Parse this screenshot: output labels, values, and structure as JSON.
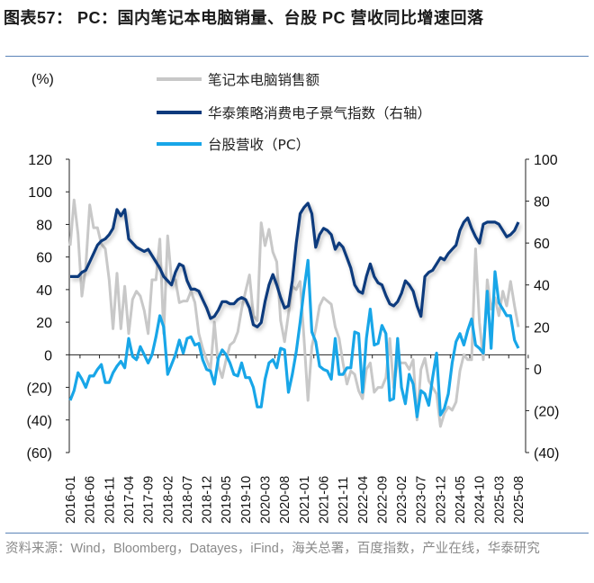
{
  "title": "图表57：  PC：国内笔记本电脑销量、台股 PC 营收同比增速回落",
  "source": "资料来源：Wind，Bloomberg，Datayes，iFind，海关总署，百度指数，产业在线，华泰研究",
  "colors": {
    "notebook_sales": "#c8c8c8",
    "sentiment_index": "#0c3a7d",
    "tw_revenue": "#18a6e8",
    "rule": "#5b84b8"
  },
  "chart_data": {
    "type": "line",
    "ylabel": "(%)",
    "ylim": [
      -60,
      120
    ],
    "y2lim": [
      -40,
      100
    ],
    "yticks": [
      "120",
      "100",
      "80",
      "60",
      "40",
      "20",
      "0",
      "(20)",
      "(40)",
      "(60)"
    ],
    "y2ticks": [
      "100",
      "80",
      "60",
      "40",
      "20",
      "0",
      "(20)",
      "(40)"
    ],
    "x_start": "2016-01",
    "x_end": "2025-08",
    "xticks": [
      "2016-01",
      "2016-06",
      "2016-11",
      "2017-04",
      "2017-09",
      "2018-02",
      "2018-07",
      "2018-12",
      "2019-05",
      "2019-10",
      "2020-03",
      "2020-08",
      "2021-01",
      "2021-06",
      "2021-11",
      "2022-04",
      "2022-09",
      "2023-02",
      "2023-07",
      "2023-12",
      "2024-05",
      "2024-10",
      "2025-03",
      "2025-08"
    ],
    "grid": false,
    "legend_position": "top",
    "series": [
      {
        "name": "笔记本电脑销售额",
        "axis": "left",
        "values": [
          67,
          95,
          74,
          36,
          54,
          92,
          78,
          78,
          68,
          65,
          46,
          16,
          50,
          16,
          42,
          13,
          34,
          39,
          36,
          27,
          13,
          46,
          46,
          71,
          13,
          73,
          46,
          46,
          32,
          33,
          33,
          39,
          32,
          13,
          4,
          -3,
          -9,
          20,
          -7,
          -14,
          -3,
          6,
          8,
          14,
          28,
          39,
          49,
          24,
          21,
          81,
          67,
          77,
          63,
          57,
          21,
          8,
          25,
          42,
          40,
          45,
          10,
          -28,
          5,
          16,
          30,
          35,
          33,
          31,
          17,
          10,
          -5,
          -18,
          -10,
          -12,
          -22,
          -27,
          -9,
          -5,
          -23,
          -20,
          -20,
          -14,
          10,
          -20,
          -4,
          -5,
          -5,
          -9,
          -3,
          -40,
          -9,
          -2,
          -16,
          -20,
          -24,
          -44,
          -36,
          -32,
          -34,
          -29,
          -10,
          0,
          -3,
          -3,
          65,
          20,
          -3,
          46,
          28,
          35,
          24,
          39,
          30,
          45,
          30,
          17
        ]
      },
      {
        "name": "华泰策略消费电子景气指数（右轴）",
        "axis": "right",
        "values": [
          44,
          44,
          44,
          46,
          47,
          51,
          55,
          59,
          61,
          62,
          64,
          67,
          76,
          73,
          76,
          62,
          60,
          58,
          57,
          56,
          57,
          54,
          51,
          48,
          44,
          42,
          40,
          46,
          50,
          49,
          42,
          38,
          38,
          37,
          33,
          29,
          24,
          25,
          28,
          32,
          32,
          31,
          31,
          33,
          34,
          33,
          29,
          21,
          20,
          22,
          32,
          40,
          45,
          40,
          34,
          29,
          30,
          42,
          60,
          74,
          77,
          79,
          74,
          58,
          64,
          67,
          66,
          64,
          57,
          60,
          58,
          53,
          48,
          40,
          37,
          36,
          44,
          50,
          44,
          41,
          40,
          35,
          31,
          30,
          32,
          36,
          42,
          40,
          37,
          30,
          25,
          44,
          46,
          47,
          50,
          53,
          52,
          55,
          57,
          59,
          66,
          70,
          72,
          67,
          63,
          60,
          69,
          70,
          70,
          70,
          69,
          66,
          63,
          64,
          66,
          70
        ]
      },
      {
        "name": "台股营收（PC）",
        "axis": "left",
        "values": [
          -28,
          -22,
          -11,
          -15,
          -20,
          -13,
          -13,
          -9,
          -6,
          -17,
          -17,
          -11,
          -7,
          -4,
          -8,
          10,
          -1,
          -3,
          5,
          0,
          -5,
          0,
          11,
          24,
          17,
          -12,
          -6,
          0,
          9,
          1,
          10,
          11,
          6,
          7,
          -3,
          -9,
          -10,
          -18,
          -2,
          3,
          0,
          -5,
          -12,
          -13,
          -5,
          -14,
          -14,
          -20,
          -32,
          -32,
          -15,
          -5,
          -3,
          -8,
          4,
          3,
          -23,
          -12,
          2,
          20,
          40,
          58,
          14,
          8,
          -7,
          -9,
          -10,
          -15,
          10,
          -12,
          -12,
          -8,
          -8,
          14,
          13,
          -23,
          10,
          28,
          6,
          7,
          18,
          13,
          -28,
          -27,
          10,
          -20,
          -30,
          -12,
          -18,
          -38,
          -22,
          -24,
          -31,
          -14,
          1,
          -37,
          -33,
          -24,
          -5,
          8,
          13,
          6,
          15,
          22,
          6,
          4,
          1,
          39,
          4,
          51,
          32,
          28,
          24,
          24,
          9,
          4
        ]
      }
    ]
  }
}
